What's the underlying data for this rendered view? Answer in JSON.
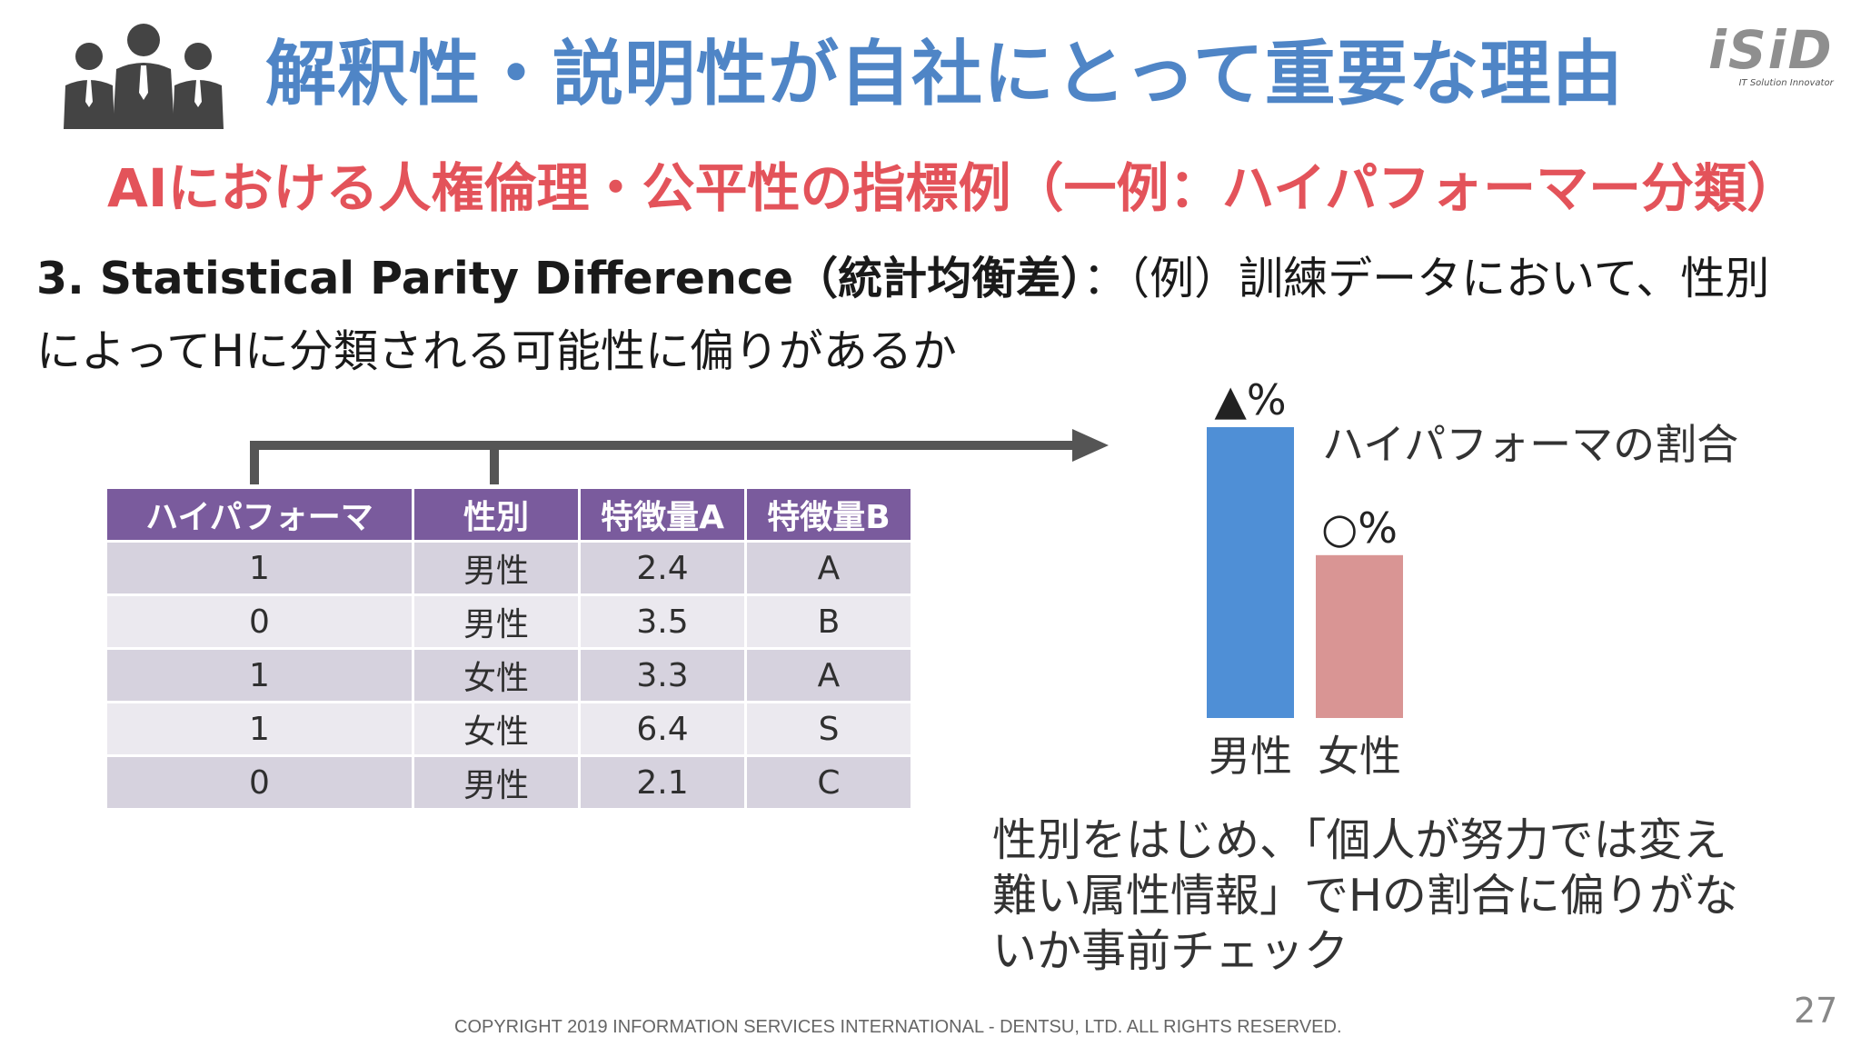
{
  "header": {
    "title": "解釈性・説明性が自社にとって重要な理由",
    "logo_text": "iSiD",
    "logo_tagline": "IT Solution Innovator"
  },
  "subtitle": "AIにおける人権倫理・公平性の指標例（一例：ハイパフォーマー分類）",
  "description": {
    "bold_part": "3. Statistical Parity Difference（統計均衡差）",
    "rest_part": "：（例）訓練データにおいて、性別",
    "line2": "によってHに分類される可能性に偏りがあるか"
  },
  "table": {
    "headers": [
      "ハイパフォーマ",
      "性別",
      "特徴量A",
      "特徴量B"
    ],
    "rows": [
      [
        "1",
        "男性",
        "2.4",
        "A"
      ],
      [
        "0",
        "男性",
        "3.5",
        "B"
      ],
      [
        "1",
        "女性",
        "3.3",
        "A"
      ],
      [
        "1",
        "女性",
        "6.4",
        "S"
      ],
      [
        "0",
        "男性",
        "2.1",
        "C"
      ]
    ]
  },
  "chart_data": {
    "type": "bar",
    "categories": [
      "男性",
      "女性"
    ],
    "values": [
      1.0,
      0.56
    ],
    "bar_labels": [
      "▲%",
      "○%"
    ],
    "title": "ハイパフォーマの割合",
    "colors": [
      "#4f8fd6",
      "#d99594"
    ]
  },
  "note": {
    "lines": [
      "性別をはじめ、「個人が努力では変え",
      "難い属性情報」でHの割合に偏りがな",
      "いか事前チェック"
    ]
  },
  "footer": {
    "copyright": "COPYRIGHT 2019 INFORMATION SERVICES INTERNATIONAL - DENTSU, LTD. ALL RIGHTS RESERVED.",
    "page_number": "27"
  }
}
